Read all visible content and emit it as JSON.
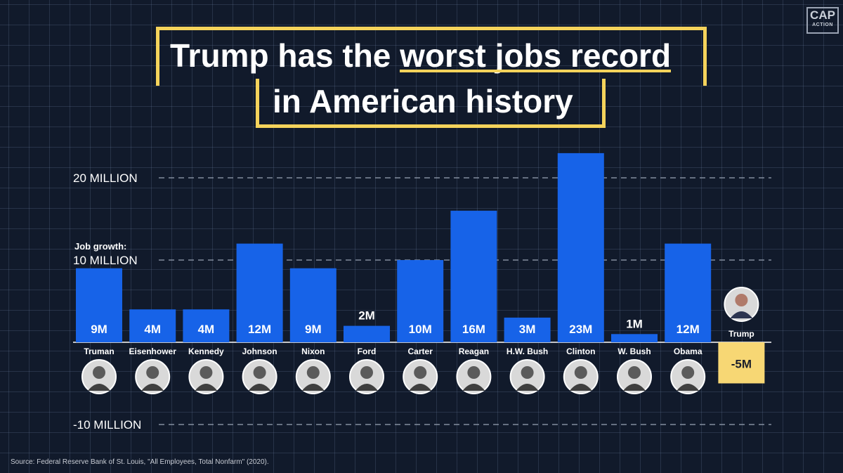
{
  "header": {
    "title_line1_prefix": "Trump has the ",
    "title_line1_highlight": "worst jobs record",
    "title_line2": "in American history"
  },
  "logo": {
    "top": "CAP",
    "bottom": "ACTION"
  },
  "source": "Source: Federal Reserve Bank of St. Louis, \"All Employees, Total Nonfarm\" (2020).",
  "colors": {
    "bar": "#1763e8",
    "trump_bar": "#f7d774",
    "title_border": "#f5d35b",
    "background": "#111a2b"
  },
  "chart_data": {
    "type": "bar",
    "title": "Trump has the worst jobs record in American history",
    "ylabel": "Job growth:",
    "ylim": [
      -10,
      22
    ],
    "yticks": [
      {
        "value": 20,
        "label": "20 MILLION"
      },
      {
        "value": 10,
        "label": "10 MILLION"
      },
      {
        "value": -10,
        "label": "-10 MILLION"
      }
    ],
    "categories": [
      "Truman",
      "Eisenhower",
      "Kennedy",
      "Johnson",
      "Nixon",
      "Ford",
      "Carter",
      "Reagan",
      "H.W. Bush",
      "Clinton",
      "W. Bush",
      "Obama",
      "Trump"
    ],
    "values": [
      9,
      4,
      4,
      12,
      9,
      2,
      10,
      16,
      3,
      23,
      1,
      12,
      -5
    ],
    "labels": [
      "9M",
      "4M",
      "4M",
      "12M",
      "9M",
      "2M",
      "10M",
      "16M",
      "3M",
      "23M",
      "1M",
      "12M",
      "-5M"
    ],
    "highlight": "Trump"
  }
}
